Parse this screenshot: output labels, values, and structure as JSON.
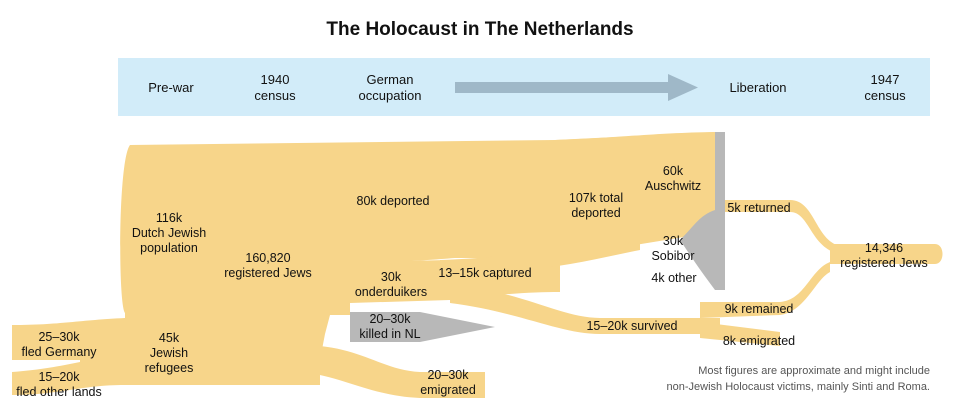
{
  "title": "The Holocaust in The Netherlands",
  "colors": {
    "flow": "#f7d58a",
    "loss": "#b8b8b8",
    "band": "#d2ecf9",
    "arrow": "#9fb8c8"
  },
  "timeline": {
    "prewar": "Pre-war",
    "census1940_l1": "1940",
    "census1940_l2": "census",
    "occupation_l1": "German",
    "occupation_l2": "occupation",
    "liberation": "Liberation",
    "census1947_l1": "1947",
    "census1947_l2": "census"
  },
  "labels": {
    "dutch_l1": "116k",
    "dutch_l2": "Dutch Jewish",
    "dutch_l3": "population",
    "registered_l1": "160,820",
    "registered_l2": "registered Jews",
    "deported": "80k deported",
    "total_deported_l1": "107k total",
    "total_deported_l2": "deported",
    "auschwitz_l1": "60k",
    "auschwitz_l2": "Auschwitz",
    "sobibor_l1": "30k",
    "sobibor_l2": "Sobibor",
    "other": "4k other",
    "returned": "5k returned",
    "registered1947_l1": "14,346",
    "registered1947_l2": "registered Jews",
    "onderduikers_l1": "30k",
    "onderduikers_l2": "onderduikers",
    "captured": "13–15k captured",
    "killed_l1": "20–30k",
    "killed_l2": "killed in NL",
    "survived": "15–20k survived",
    "remained": "9k remained",
    "emigrated8k": "8k emigrated",
    "refugees_l1": "45k",
    "refugees_l2": "Jewish",
    "refugees_l3": "refugees",
    "fled_germany_l1": "25–30k",
    "fled_germany_l2": "fled Germany",
    "fled_other_l1": "15–20k",
    "fled_other_l2": "fled other lands",
    "emigrated_l1": "20–30k",
    "emigrated_l2": "emigrated"
  },
  "note": {
    "line1": "Most figures are approximate and might include",
    "line2": "non-Jewish Holocaust victims, mainly Sinti and Roma."
  }
}
